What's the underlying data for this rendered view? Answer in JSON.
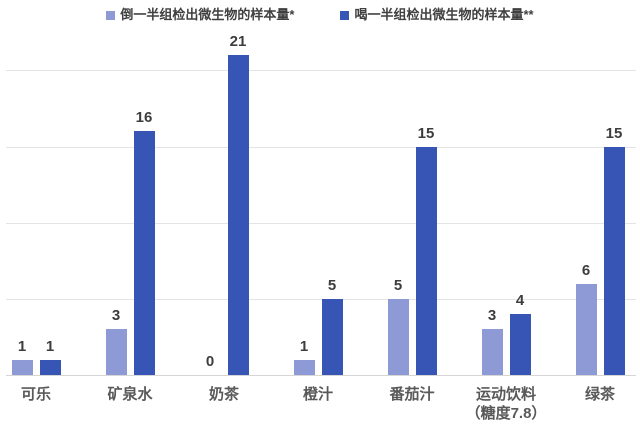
{
  "chart_data": {
    "type": "bar",
    "title": "",
    "xlabel": "",
    "ylabel": "",
    "categories": [
      "可乐",
      "矿泉水",
      "奶茶",
      "橙汁",
      "番茄汁",
      "运动饮料\n（糖度7.8）",
      "绿茶"
    ],
    "series": [
      {
        "name": "倒一半组检出微生物的样本量*",
        "color": "#8e9ad6",
        "values": [
          1,
          3,
          0,
          1,
          5,
          3,
          6
        ]
      },
      {
        "name": "喝一半组检出微生物的样本量**",
        "color": "#3655b5",
        "values": [
          1,
          16,
          21,
          5,
          15,
          4,
          15
        ]
      }
    ],
    "data_labels_shown": true,
    "ylim": [
      0,
      22
    ],
    "gridline_values": [
      5,
      10,
      15,
      20
    ],
    "grid": true,
    "y_axis_labels_shown": false,
    "legend_position": "top-center",
    "background_color": "#ffffff",
    "gridline_color": "#e4e4e4",
    "axis_line_color": "#d6d6d6"
  }
}
